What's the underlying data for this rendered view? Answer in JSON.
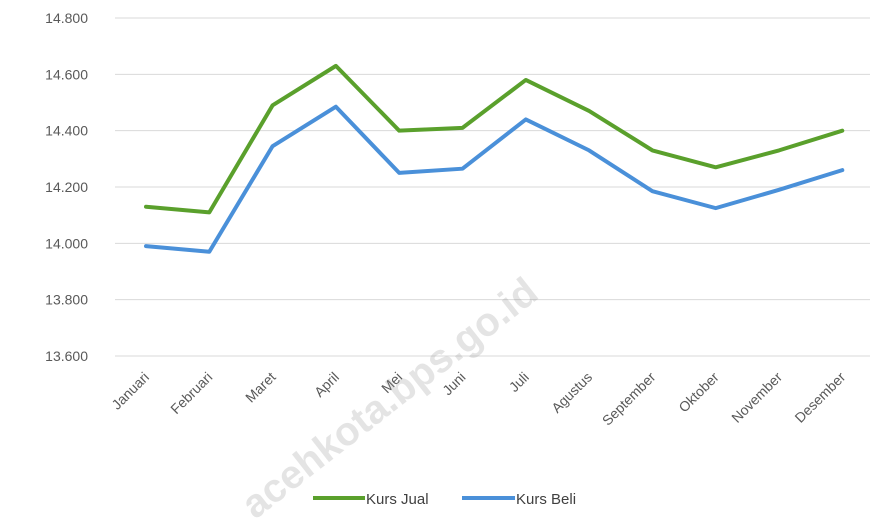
{
  "chart_data": {
    "type": "line",
    "categories": [
      "Januari",
      "Februari",
      "Maret",
      "April",
      "Mei",
      "Juni",
      "Juli",
      "Agustus",
      "September",
      "Oktober",
      "November",
      "Desember"
    ],
    "series": [
      {
        "name": "Kurs Jual",
        "color": "#5aa02c",
        "values": [
          14130,
          14110,
          14490,
          14630,
          14400,
          14410,
          14580,
          14470,
          14330,
          14270,
          14330,
          14400
        ]
      },
      {
        "name": "Kurs Beli",
        "color": "#4a90d9",
        "values": [
          13990,
          13970,
          14345,
          14485,
          14250,
          14265,
          14440,
          14330,
          14185,
          14125,
          14190,
          14260
        ]
      }
    ],
    "ylim": [
      13600,
      14800
    ],
    "yticks": [
      13600,
      13800,
      14000,
      14200,
      14400,
      14600,
      14800
    ],
    "ytick_labels": [
      "13.600",
      "13.800",
      "14.000",
      "14.200",
      "14.400",
      "14.600",
      "14.800"
    ],
    "grid": true,
    "legend_position": "bottom"
  },
  "watermark": "acehkota.bps.go.id"
}
